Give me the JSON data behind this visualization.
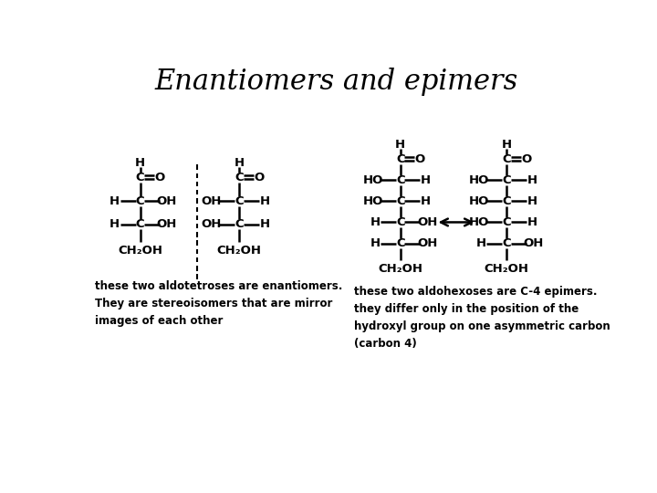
{
  "title": "Enantiomers and epimers",
  "title_fontsize": 22,
  "bg_color": "#ffffff",
  "text_color": "#000000",
  "caption_left": "these two aldotetroses are enantiomers.\nThey are stereoisomers that are mirror\nimages of each other",
  "caption_right": "these two aldohexoses are C-4 epimers.\nthey differ only in the position of the\nhydroxyl group on one asymmetric carbon\n(carbon 4)"
}
